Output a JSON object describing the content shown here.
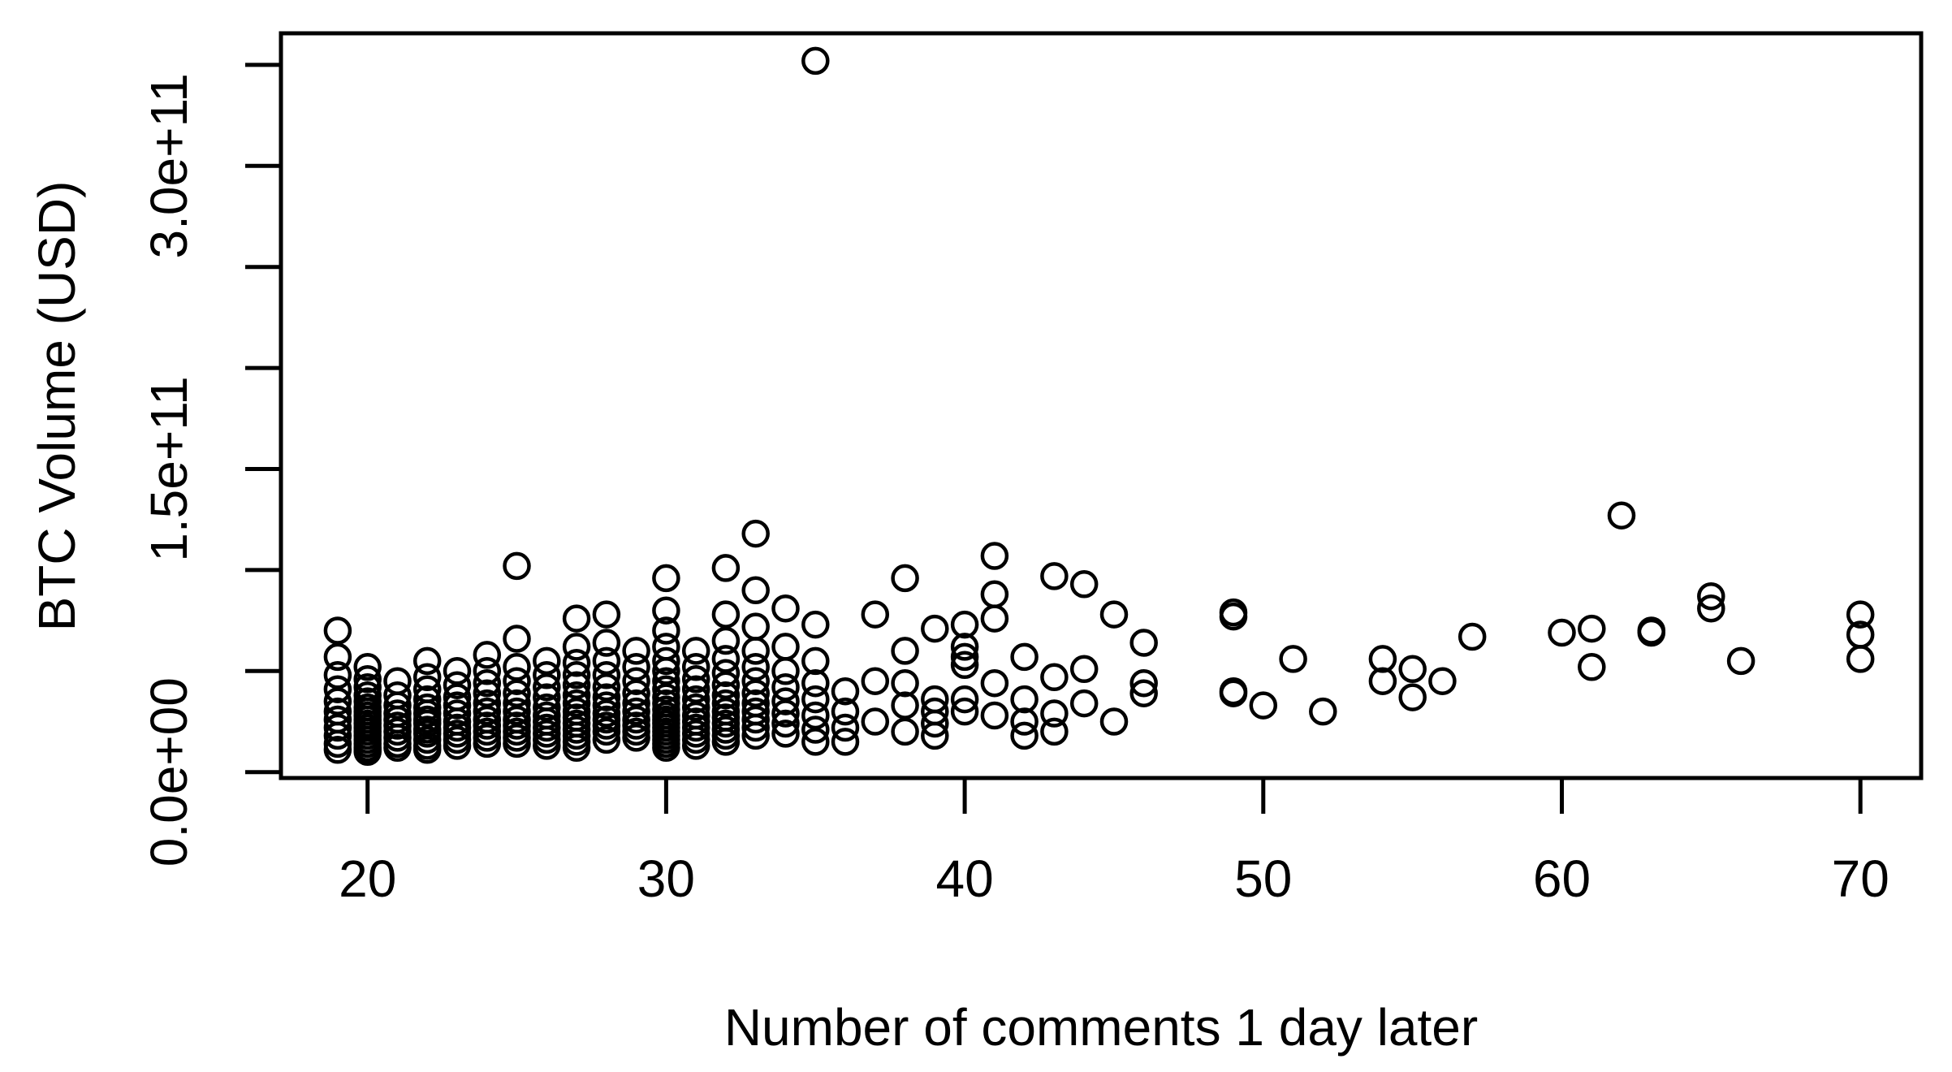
{
  "figure": {
    "background": "#ffffff",
    "foreground": "#000000"
  },
  "chart_data": {
    "type": "scatter",
    "title": "",
    "xlabel": "Number of comments 1 day later",
    "ylabel": "BTC Volume (USD)",
    "legend": "none",
    "grid": "off",
    "marker": {
      "shape": "open-circle",
      "color": "#000000",
      "radius_px": 15,
      "stroke_px": 4.5
    },
    "xlim": [
      17.1,
      72.0
    ],
    "ylim_e9": [
      -3,
      365
    ],
    "x_ticks": [
      {
        "value": 20,
        "label": "20"
      },
      {
        "value": 30,
        "label": "30"
      },
      {
        "value": 40,
        "label": "40"
      },
      {
        "value": 50,
        "label": "50"
      },
      {
        "value": 60,
        "label": "60"
      },
      {
        "value": 70,
        "label": "70"
      }
    ],
    "y_ticks_minor_e9": [
      0,
      50,
      100,
      150,
      200,
      250,
      300,
      350
    ],
    "y_tick_labels": [
      {
        "value_e9": 0,
        "label": "0.0e+00"
      },
      {
        "value_e9": 150,
        "label": "1.5e+11"
      },
      {
        "value_e9": 300,
        "label": "3.0e+11"
      }
    ],
    "y_unit_note": "point y values are BTC volume in billions of USD (1e9)",
    "points": [
      [
        19,
        70
      ],
      [
        19,
        57
      ],
      [
        19,
        48
      ],
      [
        19,
        41
      ],
      [
        19,
        35
      ],
      [
        19,
        30
      ],
      [
        19,
        26
      ],
      [
        19,
        22
      ],
      [
        19,
        18
      ],
      [
        19,
        14
      ],
      [
        19,
        11
      ],
      [
        20,
        52
      ],
      [
        20,
        46
      ],
      [
        20,
        42
      ],
      [
        20,
        38
      ],
      [
        20,
        35
      ],
      [
        20,
        32
      ],
      [
        20,
        30
      ],
      [
        20,
        28
      ],
      [
        20,
        26
      ],
      [
        20,
        24
      ],
      [
        20,
        22
      ],
      [
        20,
        20
      ],
      [
        20,
        18
      ],
      [
        20,
        16
      ],
      [
        20,
        14
      ],
      [
        20,
        12
      ],
      [
        20,
        11
      ],
      [
        20,
        10
      ],
      [
        21,
        45
      ],
      [
        21,
        38
      ],
      [
        21,
        33
      ],
      [
        21,
        29
      ],
      [
        21,
        26
      ],
      [
        21,
        23
      ],
      [
        21,
        20
      ],
      [
        21,
        17
      ],
      [
        21,
        14
      ],
      [
        21,
        12
      ],
      [
        22,
        55
      ],
      [
        22,
        47
      ],
      [
        22,
        41
      ],
      [
        22,
        36
      ],
      [
        22,
        32
      ],
      [
        22,
        29
      ],
      [
        22,
        26
      ],
      [
        22,
        24
      ],
      [
        22,
        21
      ],
      [
        22,
        19
      ],
      [
        22,
        16
      ],
      [
        22,
        13
      ],
      [
        22,
        11
      ],
      [
        23,
        50
      ],
      [
        23,
        43
      ],
      [
        23,
        37
      ],
      [
        23,
        33
      ],
      [
        23,
        29
      ],
      [
        23,
        25
      ],
      [
        23,
        22
      ],
      [
        23,
        19
      ],
      [
        23,
        16
      ],
      [
        23,
        13
      ],
      [
        24,
        58
      ],
      [
        24,
        50
      ],
      [
        24,
        44
      ],
      [
        24,
        39
      ],
      [
        24,
        34
      ],
      [
        24,
        30
      ],
      [
        24,
        26
      ],
      [
        24,
        23
      ],
      [
        24,
        20
      ],
      [
        24,
        17
      ],
      [
        24,
        14
      ],
      [
        25,
        102
      ],
      [
        25,
        66
      ],
      [
        25,
        52
      ],
      [
        25,
        45
      ],
      [
        25,
        39
      ],
      [
        25,
        34
      ],
      [
        25,
        30
      ],
      [
        25,
        26
      ],
      [
        25,
        23
      ],
      [
        25,
        20
      ],
      [
        25,
        17
      ],
      [
        25,
        14
      ],
      [
        26,
        55
      ],
      [
        26,
        48
      ],
      [
        26,
        42
      ],
      [
        26,
        37
      ],
      [
        26,
        32
      ],
      [
        26,
        28
      ],
      [
        26,
        25
      ],
      [
        26,
        22
      ],
      [
        26,
        19
      ],
      [
        26,
        16
      ],
      [
        26,
        13
      ],
      [
        27,
        76
      ],
      [
        27,
        62
      ],
      [
        27,
        54
      ],
      [
        27,
        48
      ],
      [
        27,
        43
      ],
      [
        27,
        38
      ],
      [
        27,
        34
      ],
      [
        27,
        30
      ],
      [
        27,
        27
      ],
      [
        27,
        24
      ],
      [
        27,
        21
      ],
      [
        27,
        18
      ],
      [
        27,
        15
      ],
      [
        27,
        12
      ],
      [
        28,
        78
      ],
      [
        28,
        64
      ],
      [
        28,
        55
      ],
      [
        28,
        48
      ],
      [
        28,
        42
      ],
      [
        28,
        37
      ],
      [
        28,
        33
      ],
      [
        28,
        29
      ],
      [
        28,
        26
      ],
      [
        28,
        23
      ],
      [
        28,
        20
      ],
      [
        28,
        16
      ],
      [
        29,
        60
      ],
      [
        29,
        52
      ],
      [
        29,
        45
      ],
      [
        29,
        39
      ],
      [
        29,
        34
      ],
      [
        29,
        30
      ],
      [
        29,
        26
      ],
      [
        29,
        23
      ],
      [
        29,
        20
      ],
      [
        29,
        17
      ],
      [
        30,
        96
      ],
      [
        30,
        80
      ],
      [
        30,
        70
      ],
      [
        30,
        62
      ],
      [
        30,
        55
      ],
      [
        30,
        50
      ],
      [
        30,
        45
      ],
      [
        30,
        41
      ],
      [
        30,
        37
      ],
      [
        30,
        34
      ],
      [
        30,
        31
      ],
      [
        30,
        28
      ],
      [
        30,
        26
      ],
      [
        30,
        24
      ],
      [
        30,
        22
      ],
      [
        30,
        20
      ],
      [
        30,
        18
      ],
      [
        30,
        16
      ],
      [
        30,
        14
      ],
      [
        30,
        12
      ],
      [
        31,
        60
      ],
      [
        31,
        52
      ],
      [
        31,
        46
      ],
      [
        31,
        41
      ],
      [
        31,
        36
      ],
      [
        31,
        32
      ],
      [
        31,
        28
      ],
      [
        31,
        25
      ],
      [
        31,
        22
      ],
      [
        31,
        19
      ],
      [
        31,
        16
      ],
      [
        31,
        13
      ],
      [
        32,
        101
      ],
      [
        32,
        78
      ],
      [
        32,
        65
      ],
      [
        32,
        56
      ],
      [
        32,
        49
      ],
      [
        32,
        43
      ],
      [
        32,
        38
      ],
      [
        32,
        34
      ],
      [
        32,
        30
      ],
      [
        32,
        27
      ],
      [
        32,
        24
      ],
      [
        32,
        21
      ],
      [
        32,
        18
      ],
      [
        32,
        15
      ],
      [
        33,
        118
      ],
      [
        33,
        90
      ],
      [
        33,
        72
      ],
      [
        33,
        60
      ],
      [
        33,
        52
      ],
      [
        33,
        45
      ],
      [
        33,
        39
      ],
      [
        33,
        34
      ],
      [
        33,
        30
      ],
      [
        33,
        26
      ],
      [
        33,
        22
      ],
      [
        33,
        18
      ],
      [
        34,
        81
      ],
      [
        34,
        62
      ],
      [
        34,
        50
      ],
      [
        34,
        42
      ],
      [
        34,
        35
      ],
      [
        34,
        29
      ],
      [
        34,
        24
      ],
      [
        34,
        19
      ],
      [
        35,
        352
      ],
      [
        35,
        73
      ],
      [
        35,
        55
      ],
      [
        35,
        44
      ],
      [
        35,
        36
      ],
      [
        35,
        28
      ],
      [
        35,
        21
      ],
      [
        35,
        15
      ],
      [
        36,
        40
      ],
      [
        36,
        30
      ],
      [
        36,
        22
      ],
      [
        36,
        15
      ],
      [
        37,
        78
      ],
      [
        37,
        45
      ],
      [
        37,
        25
      ],
      [
        38,
        96
      ],
      [
        38,
        60
      ],
      [
        38,
        44
      ],
      [
        38,
        33
      ],
      [
        38,
        20
      ],
      [
        39,
        71
      ],
      [
        39,
        36
      ],
      [
        39,
        30
      ],
      [
        39,
        24
      ],
      [
        39,
        18
      ],
      [
        40,
        73
      ],
      [
        40,
        62
      ],
      [
        40,
        57
      ],
      [
        40,
        53
      ],
      [
        40,
        36
      ],
      [
        40,
        30
      ],
      [
        41,
        107
      ],
      [
        41,
        88
      ],
      [
        41,
        76
      ],
      [
        41,
        44
      ],
      [
        41,
        28
      ],
      [
        42,
        57
      ],
      [
        42,
        36
      ],
      [
        42,
        25
      ],
      [
        42,
        18
      ],
      [
        43,
        97
      ],
      [
        43,
        47
      ],
      [
        43,
        29
      ],
      [
        43,
        20
      ],
      [
        44,
        93
      ],
      [
        44,
        51
      ],
      [
        44,
        34
      ],
      [
        45,
        78
      ],
      [
        45,
        25
      ],
      [
        46,
        64
      ],
      [
        46,
        44
      ],
      [
        46,
        39
      ],
      [
        49,
        79
      ],
      [
        49,
        77
      ],
      [
        49,
        40
      ],
      [
        49,
        39
      ],
      [
        50,
        33
      ],
      [
        51,
        56
      ],
      [
        52,
        30
      ],
      [
        54,
        56
      ],
      [
        54,
        45
      ],
      [
        55,
        51
      ],
      [
        55,
        37
      ],
      [
        56,
        45
      ],
      [
        57,
        67
      ],
      [
        60,
        69
      ],
      [
        61,
        71
      ],
      [
        61,
        52
      ],
      [
        62,
        127
      ],
      [
        63,
        70
      ],
      [
        63,
        69
      ],
      [
        65,
        87
      ],
      [
        65,
        81
      ],
      [
        66,
        55
      ],
      [
        70,
        78
      ],
      [
        70,
        68
      ],
      [
        70,
        56
      ]
    ]
  }
}
